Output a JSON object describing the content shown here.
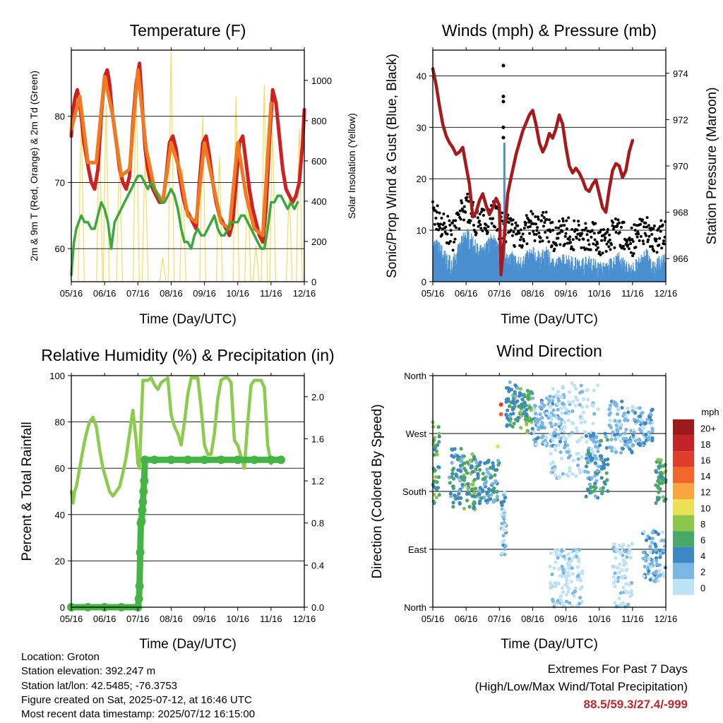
{
  "x_ticks": [
    "05/16",
    "06/16",
    "07/16",
    "08/16",
    "09/16",
    "10/16",
    "11/16",
    "12/16"
  ],
  "colors": {
    "red": "#d02020",
    "orange": "#f07a20",
    "green": "#3aa83a",
    "yellow": "#f5dc60",
    "maroon": "#a8191b",
    "black": "#000000",
    "blue": "#4a90d0",
    "lightgreen": "#8ccc4c",
    "precip": "#44b444"
  },
  "chart_data": [
    {
      "id": "temperature",
      "type": "line",
      "title": "Temperature (F)",
      "xlabel": "Time (Day/UTC)",
      "ylabel": "2m & 9m T (Red, Orange) & 2m Td (Green)",
      "y2label": "Solar Insolation (Yellow)",
      "ylim": [
        55,
        90
      ],
      "yticks": [
        60,
        70,
        80
      ],
      "y2lim": [
        0,
        1150
      ],
      "y2ticks": [
        0,
        200,
        400,
        600,
        800,
        1000
      ],
      "grid": true,
      "series": [
        {
          "color": "red",
          "x": [
            0,
            0.05,
            0.12,
            0.18,
            0.25,
            0.32,
            0.38,
            0.45,
            0.52,
            0.6,
            0.7,
            0.8,
            0.9,
            1.0,
            1.08,
            1.15,
            1.22,
            1.3,
            1.38,
            1.45,
            1.55,
            1.65,
            1.75,
            1.85,
            1.95,
            2.05,
            2.15,
            2.22,
            2.3,
            2.38,
            2.45,
            2.55,
            2.65,
            2.75,
            2.85,
            2.95,
            3.05,
            3.15,
            3.25,
            3.35,
            3.45,
            3.55,
            3.65,
            3.75,
            3.85,
            3.95,
            4.05,
            4.15,
            4.25,
            4.35,
            4.45,
            4.55,
            4.65,
            4.75,
            4.85,
            4.95,
            5.05,
            5.15,
            5.25,
            5.35,
            5.45,
            5.55,
            5.65,
            5.75,
            5.85,
            5.95,
            6.05,
            6.15,
            6.25,
            6.35,
            6.45,
            6.55,
            6.65,
            6.75,
            6.85,
            6.95,
            7.0
          ],
          "y": [
            77,
            81,
            83,
            84,
            82,
            79,
            76,
            74,
            72,
            70,
            69,
            72,
            80,
            86,
            87,
            85,
            81,
            78,
            75,
            72,
            70,
            69,
            71,
            79,
            85,
            88,
            80,
            75,
            72,
            70,
            69,
            68,
            67,
            67,
            71,
            76,
            77,
            75,
            71,
            68,
            66,
            65,
            64,
            63,
            70,
            76,
            77,
            74,
            70,
            67,
            65,
            64,
            63,
            62,
            64,
            70,
            76,
            77,
            73,
            69,
            66,
            64,
            62,
            61,
            66,
            76,
            84,
            82,
            77,
            72,
            69,
            68,
            67,
            68,
            70,
            76,
            81
          ]
        },
        {
          "color": "orange",
          "x": [
            0,
            0.25,
            0.5,
            0.75,
            1.0,
            1.25,
            1.5,
            1.75,
            2.0,
            2.25,
            2.5,
            2.75,
            3.0,
            3.25,
            3.5,
            3.75,
            4.0,
            4.25,
            4.5,
            4.75,
            5.0,
            5.25,
            5.5,
            5.75,
            6.0
          ],
          "y": [
            78,
            83,
            73,
            73,
            86,
            80,
            71,
            72,
            87,
            75,
            69,
            67,
            76,
            72,
            65,
            64,
            76,
            70,
            64,
            63,
            76,
            68,
            63,
            62,
            82
          ]
        },
        {
          "color": "green",
          "x": [
            0,
            0.03,
            0.08,
            0.15,
            0.22,
            0.3,
            0.4,
            0.5,
            0.6,
            0.7,
            0.8,
            0.9,
            1.0,
            1.1,
            1.2,
            1.3,
            1.4,
            1.5,
            1.6,
            1.7,
            1.8,
            1.9,
            2.0,
            2.1,
            2.2,
            2.3,
            2.4,
            2.5,
            2.6,
            2.7,
            2.8,
            2.9,
            3.0,
            3.1,
            3.2,
            3.3,
            3.4,
            3.5,
            3.6,
            3.7,
            3.8,
            3.9,
            4.0,
            4.1,
            4.2,
            4.3,
            4.4,
            4.5,
            4.6,
            4.7,
            4.8,
            4.9,
            5.0,
            5.1,
            5.2,
            5.3,
            5.4,
            5.5,
            5.6,
            5.7,
            5.8,
            5.9,
            6.0,
            6.1,
            6.2,
            6.3,
            6.4,
            6.5,
            6.6,
            6.7,
            6.8
          ],
          "y": [
            56,
            58,
            61,
            63,
            64,
            65,
            64,
            64,
            63,
            63,
            65,
            67,
            66,
            64,
            60,
            64,
            65,
            66,
            67,
            68,
            69,
            70,
            71,
            71,
            70,
            69,
            70,
            69,
            68,
            67,
            67,
            68,
            69,
            68,
            66,
            63,
            61,
            61,
            60,
            62,
            63,
            62,
            62,
            63,
            64,
            65,
            63,
            62,
            62,
            63,
            64,
            64,
            64,
            65,
            65,
            64,
            63,
            62,
            61,
            60,
            60,
            63,
            67,
            67,
            68,
            68,
            67,
            66,
            67,
            66,
            67
          ]
        }
      ],
      "insolation_peaks": [
        {
          "x": 0.3,
          "v": 820
        },
        {
          "x": 0.85,
          "v": 760
        },
        {
          "x": 1.05,
          "v": 880
        },
        {
          "x": 1.45,
          "v": 620
        },
        {
          "x": 1.95,
          "v": 1000
        },
        {
          "x": 2.22,
          "v": 620
        },
        {
          "x": 2.75,
          "v": 120
        },
        {
          "x": 3.0,
          "v": 1150
        },
        {
          "x": 3.35,
          "v": 560
        },
        {
          "x": 3.95,
          "v": 820
        },
        {
          "x": 4.45,
          "v": 620
        },
        {
          "x": 4.95,
          "v": 920
        },
        {
          "x": 5.3,
          "v": 520
        },
        {
          "x": 5.55,
          "v": 180
        },
        {
          "x": 5.8,
          "v": 980
        },
        {
          "x": 6.05,
          "v": 740
        },
        {
          "x": 6.55,
          "v": 440
        },
        {
          "x": 6.85,
          "v": 760
        }
      ]
    },
    {
      "id": "winds",
      "type": "line",
      "title": "Winds (mph) & Pressure (mb)",
      "xlabel": "Time (Day/UTC)",
      "ylabel": "Sonic/Prop Wind & Gust (Blue, Black)",
      "y2label": "Station Pressure (Maroon)",
      "ylim": [
        0,
        45
      ],
      "yticks": [
        0,
        10,
        20,
        30,
        40
      ],
      "y2lim": [
        965,
        975
      ],
      "y2ticks": [
        966,
        968,
        970,
        972,
        974
      ],
      "grid": true,
      "pressure": {
        "x": [
          0,
          0.1,
          0.2,
          0.3,
          0.4,
          0.5,
          0.6,
          0.7,
          0.8,
          0.9,
          1.0,
          1.1,
          1.2,
          1.3,
          1.4,
          1.5,
          1.6,
          1.7,
          1.8,
          1.9,
          2.0,
          2.05,
          2.15,
          2.25,
          2.35,
          2.5,
          2.7,
          2.9,
          3.0,
          3.1,
          3.2,
          3.3,
          3.4,
          3.5,
          3.6,
          3.7,
          3.8,
          3.9,
          4.0,
          4.1,
          4.2,
          4.3,
          4.4,
          4.5,
          4.6,
          4.7,
          4.8,
          4.9,
          5.0,
          5.1,
          5.2,
          5.3,
          5.4,
          5.5,
          5.6,
          5.7,
          5.8,
          5.9,
          6.0
        ],
        "y": [
          974.2,
          973.5,
          972.6,
          971.8,
          971.3,
          971.0,
          970.8,
          970.5,
          970.6,
          970.8,
          970.0,
          969.2,
          967.8,
          968.0,
          968.5,
          968.8,
          968.3,
          967.9,
          968.2,
          968.6,
          968.3,
          965.3,
          967.0,
          968.8,
          969.5,
          970.5,
          971.5,
          972.2,
          972.4,
          971.8,
          971.0,
          970.6,
          970.9,
          971.4,
          971.2,
          971.6,
          972.2,
          971.8,
          970.8,
          970.0,
          969.7,
          969.9,
          969.7,
          969.4,
          969.0,
          968.9,
          969.2,
          969.4,
          968.8,
          968.2,
          968.0,
          969.0,
          969.8,
          970.1,
          970.0,
          969.5,
          969.8,
          970.6,
          971.1
        ]
      },
      "wind_baseline": {
        "x": [
          0,
          0.2,
          0.4,
          0.6,
          0.8,
          1.0,
          1.2,
          1.4,
          1.6,
          1.8,
          2.0,
          2.2,
          2.4,
          2.6,
          2.8,
          3.0,
          3.2,
          3.4,
          3.6,
          3.8,
          4.0,
          4.2,
          4.4,
          4.6,
          4.8,
          5.0,
          5.2,
          5.4,
          5.6,
          5.8,
          6.0,
          6.2,
          6.4,
          6.6,
          6.8,
          7.0
        ],
        "y": [
          7,
          6,
          4,
          3,
          6,
          9,
          7,
          5,
          6,
          8,
          5,
          4,
          4,
          3,
          4,
          5,
          4,
          5,
          3,
          3,
          4,
          3,
          3,
          3,
          3,
          2,
          2,
          3,
          4,
          2,
          2,
          3,
          5,
          2,
          3,
          4
        ]
      },
      "gust_spike": {
        "x": 2.12,
        "values": [
          42,
          36,
          35,
          30,
          28
        ]
      },
      "sonic_spike": {
        "x": 2.15,
        "y": 27
      }
    },
    {
      "id": "rh",
      "type": "line",
      "title": "Relative Humidity (%) & Precipitation (in)",
      "xlabel": "Time (Day/UTC)",
      "ylabel": "Percent & Total Rainfall",
      "ylim": [
        0,
        100
      ],
      "yticks": [
        0,
        20,
        40,
        60,
        80,
        100
      ],
      "y2lim": [
        0,
        2.2
      ],
      "y2ticks": [
        "0.0",
        "0.4",
        "0.8",
        "1.2",
        "1.6",
        "2.0"
      ],
      "grid": true,
      "rh": {
        "x": [
          0,
          0.05,
          0.1,
          0.15,
          0.25,
          0.35,
          0.45,
          0.55,
          0.65,
          0.75,
          0.85,
          0.95,
          1.05,
          1.15,
          1.25,
          1.35,
          1.45,
          1.55,
          1.65,
          1.75,
          1.85,
          1.95,
          2.0,
          2.05,
          2.1,
          2.15,
          2.2,
          2.3,
          2.4,
          2.5,
          2.6,
          2.7,
          2.8,
          2.9,
          3.0,
          3.1,
          3.2,
          3.3,
          3.4,
          3.5,
          3.6,
          3.7,
          3.8,
          3.9,
          4.0,
          4.1,
          4.2,
          4.3,
          4.4,
          4.5,
          4.6,
          4.7,
          4.8,
          4.9,
          5.0,
          5.1,
          5.2,
          5.3,
          5.4,
          5.5,
          5.6,
          5.7,
          5.8,
          5.9,
          6.0
        ],
        "y": [
          50,
          45,
          50,
          52,
          60,
          68,
          75,
          80,
          82,
          78,
          68,
          60,
          55,
          50,
          48,
          50,
          52,
          58,
          65,
          75,
          85,
          72,
          62,
          60,
          80,
          98,
          98,
          98,
          99,
          96,
          94,
          97,
          98,
          99,
          83,
          78,
          75,
          70,
          80,
          92,
          99,
          99,
          99,
          86,
          70,
          66,
          66,
          75,
          90,
          98,
          99,
          99,
          97,
          72,
          70,
          65,
          60,
          80,
          96,
          98,
          98,
          98,
          95,
          70,
          62
        ]
      },
      "precip": {
        "x": [
          0,
          0.5,
          1.0,
          1.5,
          2.0,
          2.03,
          2.05,
          2.07,
          2.09,
          2.11,
          2.13,
          2.15,
          2.17,
          2.19,
          2.21,
          2.5,
          3.0,
          3.5,
          4.0,
          4.5,
          5.0,
          5.5,
          6.0,
          6.3
        ],
        "y": [
          0,
          0,
          0,
          0,
          0,
          0.08,
          0.2,
          0.52,
          0.8,
          0.82,
          0.92,
          1.0,
          1.1,
          1.2,
          1.4,
          1.4,
          1.4,
          1.4,
          1.4,
          1.4,
          1.4,
          1.4,
          1.4,
          1.4
        ]
      }
    },
    {
      "id": "wind-direction",
      "type": "scatter",
      "title": "Wind Direction",
      "xlabel": "Time (Day/UTC)",
      "ylabel": "Direction (Colored By Speed)",
      "yticks": [
        "North",
        "East",
        "South",
        "West",
        "North"
      ],
      "ylim": [
        0,
        360
      ],
      "grid": true,
      "legend": {
        "title": "mph",
        "labels": [
          "20+",
          "18",
          "16",
          "14",
          "12",
          "10",
          "8",
          "6",
          "4",
          "2",
          "0"
        ],
        "colors": [
          "#9c1a1c",
          "#c4232a",
          "#e03c2b",
          "#f0662c",
          "#f8a640",
          "#ece154",
          "#8cc64a",
          "#48a868",
          "#3c88c4",
          "#7cb6e4",
          "#bde3f7"
        ]
      },
      "clusters": [
        {
          "x0": 0.0,
          "x1": 0.2,
          "d0": 160,
          "d1": 290,
          "lvl": 3
        },
        {
          "x0": 0.5,
          "x1": 0.9,
          "d0": 155,
          "d1": 250,
          "lvl": 2
        },
        {
          "x0": 0.9,
          "x1": 1.3,
          "d0": 150,
          "d1": 240,
          "lvl": 3
        },
        {
          "x0": 1.3,
          "x1": 2.0,
          "d0": 160,
          "d1": 230,
          "lvl": 2
        },
        {
          "x0": 2.05,
          "x1": 2.2,
          "d0": 80,
          "d1": 180,
          "lvl": 1
        },
        {
          "x0": 2.2,
          "x1": 2.6,
          "d0": 280,
          "d1": 350,
          "lvl": 2
        },
        {
          "x0": 2.6,
          "x1": 3.0,
          "d0": 270,
          "d1": 340,
          "lvl": 3
        },
        {
          "x0": 3.0,
          "x1": 4.0,
          "d0": 250,
          "d1": 330,
          "lvl": 1
        },
        {
          "x0": 3.5,
          "x1": 5.0,
          "d0": 200,
          "d1": 350,
          "lvl": 0
        },
        {
          "x0": 3.5,
          "x1": 4.5,
          "d0": 0,
          "d1": 90,
          "lvl": 0
        },
        {
          "x0": 4.6,
          "x1": 5.3,
          "d0": 170,
          "d1": 270,
          "lvl": 2
        },
        {
          "x0": 5.3,
          "x1": 6.0,
          "d0": 240,
          "d1": 320,
          "lvl": 1
        },
        {
          "x0": 5.4,
          "x1": 6.0,
          "d0": 0,
          "d1": 100,
          "lvl": 0
        },
        {
          "x0": 6.0,
          "x1": 6.6,
          "d0": 250,
          "d1": 310,
          "lvl": 1
        },
        {
          "x0": 6.3,
          "x1": 7.0,
          "d0": 40,
          "d1": 120,
          "lvl": 1
        },
        {
          "x0": 6.7,
          "x1": 7.0,
          "d0": 160,
          "d1": 230,
          "lvl": 3
        }
      ]
    }
  ],
  "info": {
    "location": "Location: Groton",
    "elevation": "Station elevation: 392.247 m",
    "latlon": "Station lat/lon: 42.5485; -76.3753",
    "created": "Figure created on Sat, 2025-07-12, at 16:46 UTC",
    "recent": "Most recent data timestamp: 2025/07/12 16:15:00"
  },
  "extremes": {
    "title": "Extremes For Past 7 Days",
    "subtitle": "(High/Low/Max Wind/Total Precipitation)",
    "values": "88.5/59.3/27.4/-999"
  }
}
